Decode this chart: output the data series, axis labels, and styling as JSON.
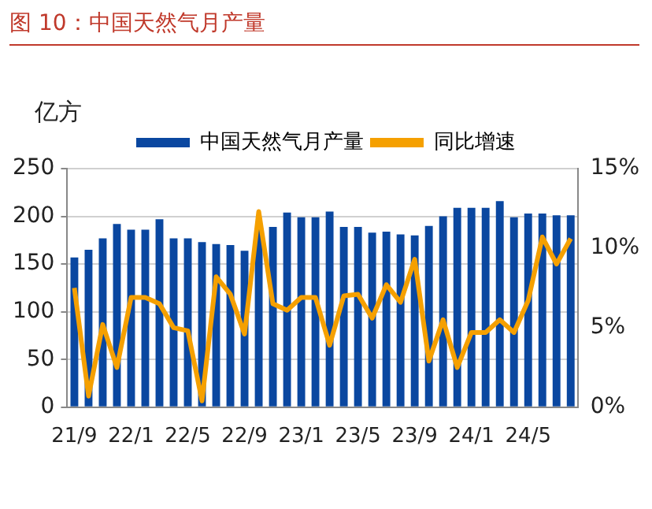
{
  "chart_data": {
    "type": "bar",
    "title": "图 10：中国天然气月产量",
    "ylabel": "亿方",
    "categories": [
      "21/9",
      null,
      null,
      null,
      "22/1",
      null,
      null,
      null,
      "22/5",
      null,
      null,
      null,
      "22/9",
      null,
      null,
      null,
      "23/1",
      null,
      null,
      null,
      "23/5",
      null,
      null,
      null,
      "23/9",
      null,
      null,
      null,
      "24/1",
      null,
      null,
      null,
      "24/5",
      null,
      null,
      null
    ],
    "series": [
      {
        "name": "中国天然气月产量",
        "color": "#0a47a0",
        "values": [
          157,
          165,
          177,
          192,
          186,
          186,
          197,
          177,
          177,
          173,
          171,
          170,
          164,
          187,
          189,
          204,
          199,
          199,
          205,
          189,
          189,
          183,
          184,
          181,
          180,
          190,
          200,
          209,
          209,
          209,
          216,
          199,
          203,
          203,
          201,
          201
        ]
      },
      {
        "name": "同比增速",
        "type": "line",
        "axis": "y2",
        "color": "#f5a000",
        "values": [
          7.5,
          0.7,
          5.2,
          2.5,
          6.9,
          6.9,
          6.5,
          5.0,
          4.8,
          0.4,
          8.2,
          7.1,
          4.6,
          12.3,
          6.5,
          6.1,
          6.9,
          6.9,
          3.9,
          7.0,
          7.1,
          5.6,
          7.7,
          6.6,
          9.3,
          2.9,
          5.5,
          2.5,
          4.7,
          4.7,
          5.5,
          4.7,
          6.7,
          10.7,
          9.0,
          10.6
        ]
      }
    ],
    "ylim": [
      0,
      250
    ],
    "yticks": [
      0,
      50,
      100,
      150,
      200,
      250
    ],
    "y2lim": [
      0,
      15
    ],
    "y2ticks": [
      {
        "value": 0,
        "label": "0%"
      },
      {
        "value": 5,
        "label": "5%"
      },
      {
        "value": 10,
        "label": "10%"
      },
      {
        "value": 15,
        "label": "15%"
      }
    ],
    "grid": "y",
    "legend": "top",
    "marker": "none"
  }
}
